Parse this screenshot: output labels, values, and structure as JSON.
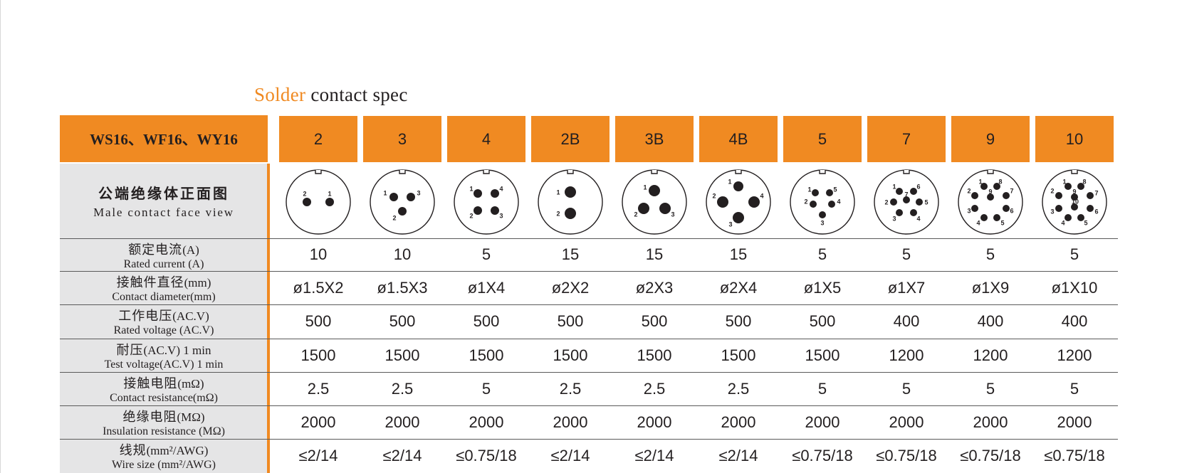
{
  "title": {
    "accent": "Solder",
    "rest": " contact spec"
  },
  "model_header": "WS16、WF16、WY16",
  "columns": [
    "2",
    "3",
    "4",
    "2B",
    "3B",
    "4B",
    "5",
    "7",
    "9",
    "10"
  ],
  "face_row": {
    "cn": "公端绝缘体正面图",
    "en": "Male contact face view"
  },
  "rows": [
    {
      "cn": "额定电流",
      "cn_unit": "(A)",
      "en": "Rated current (A)",
      "values": [
        "10",
        "10",
        "5",
        "15",
        "15",
        "15",
        "5",
        "5",
        "5",
        "5"
      ]
    },
    {
      "cn": "接触件直径",
      "cn_unit": "(mm)",
      "en": "Contact diameter(mm)",
      "values": [
        "ø1.5X2",
        "ø1.5X3",
        "ø1X4",
        "ø2X2",
        "ø2X3",
        "ø2X4",
        "ø1X5",
        "ø1X7",
        "ø1X9",
        "ø1X10"
      ]
    },
    {
      "cn": "工作电压",
      "cn_unit": "(AC.V)",
      "en": "Rated voltage (AC.V)",
      "values": [
        "500",
        "500",
        "500",
        "500",
        "500",
        "500",
        "500",
        "400",
        "400",
        "400"
      ]
    },
    {
      "cn": "耐压",
      "cn_unit": "(AC.V) 1 min",
      "en": "Test voltage(AC.V) 1 min",
      "values": [
        "1500",
        "1500",
        "1500",
        "1500",
        "1500",
        "1500",
        "1500",
        "1200",
        "1200",
        "1200"
      ]
    },
    {
      "cn": "接触电阻",
      "cn_unit": "(mΩ)",
      "en": "Contact resistance(mΩ)",
      "values": [
        "2.5",
        "2.5",
        "5",
        "2.5",
        "2.5",
        "2.5",
        "5",
        "5",
        "5",
        "5"
      ]
    },
    {
      "cn": "绝缘电阻",
      "cn_unit": "(MΩ)",
      "en": "Insulation resistance (MΩ)",
      "values": [
        "2000",
        "2000",
        "2000",
        "2000",
        "2000",
        "2000",
        "2000",
        "2000",
        "2000",
        "2000"
      ]
    },
    {
      "cn": "线规",
      "cn_unit": "(mm²/AWG)",
      "en": "Wire size (mm²/AWG)",
      "values": [
        "≤2/14",
        "≤2/14",
        "≤0.75/18",
        "≤2/14",
        "≤2/14",
        "≤2/14",
        "≤0.75/18",
        "≤0.75/18",
        "≤0.75/18",
        "≤0.75/18"
      ]
    }
  ],
  "pin_labels": [
    [
      "2",
      "1"
    ],
    [
      "1",
      "3",
      "2"
    ],
    [
      "1",
      "4",
      "2",
      "3"
    ],
    [
      "1",
      "2"
    ],
    [
      "1",
      "2",
      "3"
    ],
    [
      "1",
      "2",
      "4",
      "3"
    ],
    [
      "1",
      "5",
      "2",
      "4",
      "3"
    ],
    [
      "1",
      "6",
      "2",
      "7",
      "5",
      "3",
      "4"
    ],
    [
      "2",
      "1",
      "8",
      "9",
      "7",
      "3",
      "6",
      "4",
      "5"
    ],
    [
      "2",
      "1",
      "8",
      "9",
      "7",
      "3",
      "10",
      "6",
      "4",
      "5"
    ]
  ],
  "colors": {
    "accent": "#f08a22",
    "label_bg": "#e5e5e6",
    "text": "#231f20"
  }
}
